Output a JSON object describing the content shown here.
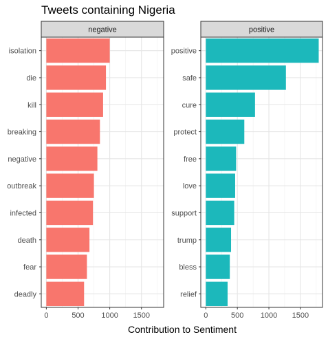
{
  "chart_data": {
    "type": "bar",
    "orientation": "horizontal",
    "title": "Tweets containing Nigeria",
    "xlabel": "Contribution to Sentiment",
    "ylabel": "",
    "xlim": [
      -80,
      1850
    ],
    "xticks": [
      0,
      500,
      1000,
      1500
    ],
    "grid": true,
    "legend": "none",
    "facets": [
      {
        "name": "negative",
        "color": "#F8766D",
        "categories": [
          "isolation",
          "die",
          "kill",
          "breaking",
          "negative",
          "outbreak",
          "infected",
          "death",
          "fear",
          "deadly"
        ],
        "values": [
          1000,
          940,
          895,
          845,
          805,
          750,
          735,
          680,
          640,
          595
        ]
      },
      {
        "name": "positive",
        "color": "#1CB8BB",
        "categories": [
          "positive",
          "safe",
          "cure",
          "protect",
          "free",
          "love",
          "support",
          "trump",
          "bless",
          "relief"
        ],
        "values": [
          1790,
          1270,
          780,
          610,
          480,
          465,
          450,
          400,
          380,
          345
        ]
      }
    ]
  }
}
